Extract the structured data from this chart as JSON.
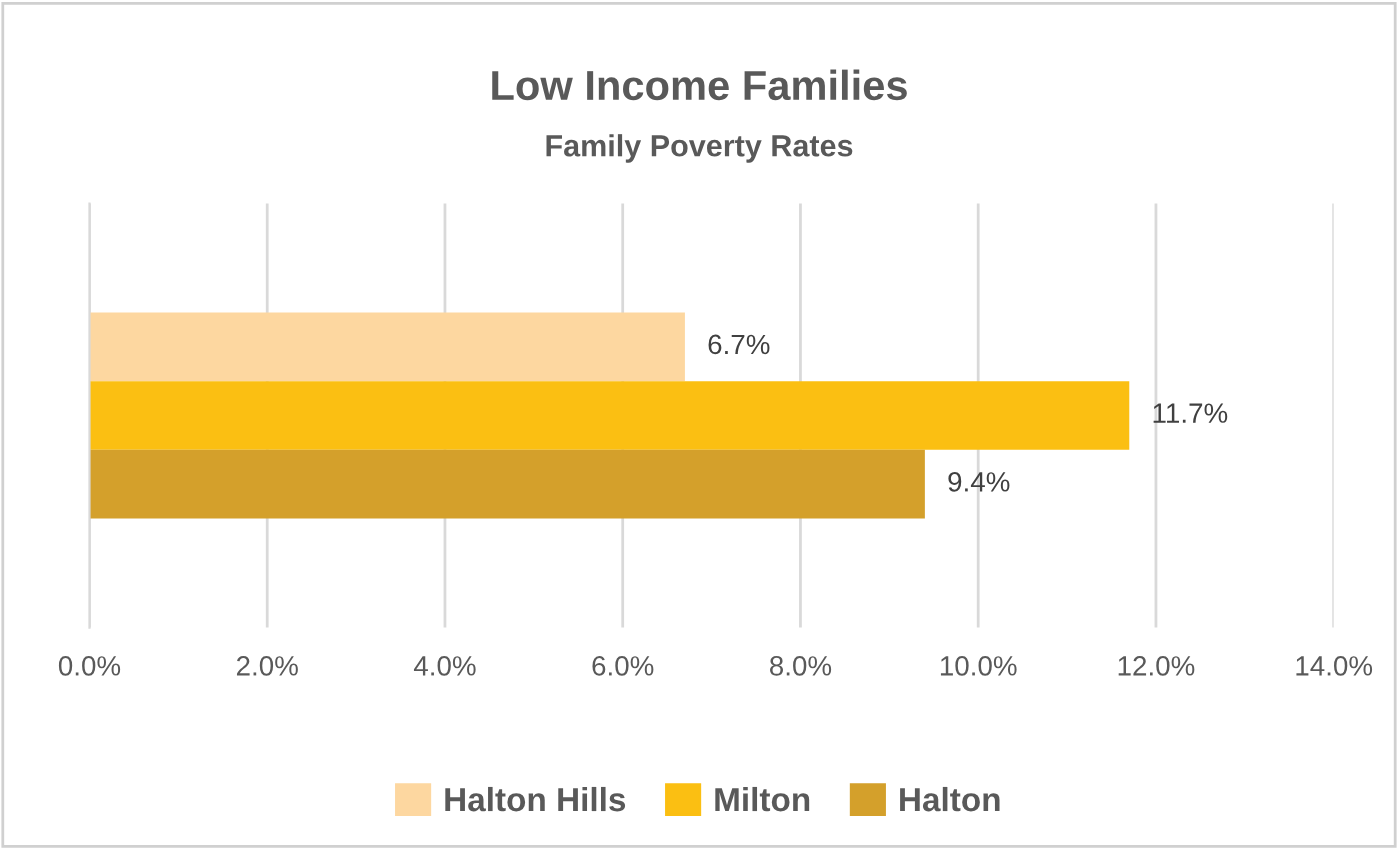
{
  "chart_data": {
    "type": "bar",
    "orientation": "horizontal",
    "title": "Low Income Families",
    "subtitle": "Family Poverty Rates",
    "categories": [
      null
    ],
    "series": [
      {
        "name": "Halton Hills",
        "color": "#fdd7a0",
        "values": [
          6.7
        ],
        "value_labels": [
          "6.7%"
        ]
      },
      {
        "name": "Milton",
        "color": "#fbbf12",
        "values": [
          11.7
        ],
        "value_labels": [
          "11.7%"
        ]
      },
      {
        "name": "Halton",
        "color": "#d4a02b",
        "values": [
          9.4
        ],
        "value_labels": [
          "9.4%"
        ]
      }
    ],
    "xlim": [
      0,
      14
    ],
    "xticks": [
      {
        "value": 0,
        "label": "0.0%"
      },
      {
        "value": 2,
        "label": "2.0%"
      },
      {
        "value": 4,
        "label": "4.0%"
      },
      {
        "value": 6,
        "label": "6.0%"
      },
      {
        "value": 8,
        "label": "8.0%"
      },
      {
        "value": 10,
        "label": "10.0%"
      },
      {
        "value": 12,
        "label": "12.0%"
      },
      {
        "value": 14,
        "label": "14.0%"
      }
    ],
    "grid": "x",
    "legend": "bottom"
  }
}
